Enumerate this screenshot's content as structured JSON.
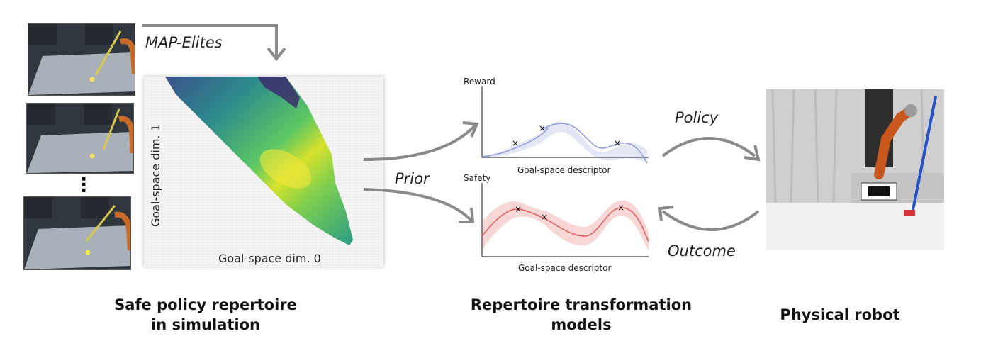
{
  "left": {
    "map_elites_label": "MAP-Elites",
    "dim0_label": "Goal-space dim. 0",
    "dim1_label": "Goal-space dim. 1",
    "ellipsis": "⋮",
    "caption_line1": "Safe policy repertoire",
    "caption_line2": "in simulation"
  },
  "middle": {
    "prior_label": "Prior",
    "reward_plot": {
      "ylabel": "Reward",
      "xlabel": "Goal-space descriptor",
      "color": "#8f9bd8"
    },
    "safety_plot": {
      "ylabel": "Safety",
      "xlabel": "Goal-space descriptor",
      "color": "#e05a5a"
    },
    "caption_line1": "Repertoire transformation",
    "caption_line2": "models"
  },
  "right": {
    "policy_label": "Policy",
    "outcome_label": "Outcome",
    "caption": "Physical robot"
  },
  "colors": {
    "arrow": "#8a8a8a",
    "heatmap_low": "#440154",
    "heatmap_mid": "#21908d",
    "heatmap_high": "#fde725"
  }
}
